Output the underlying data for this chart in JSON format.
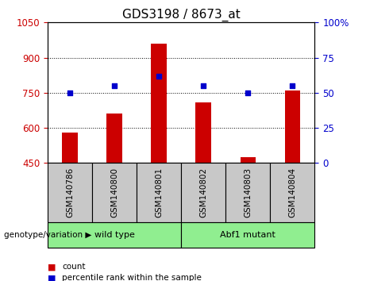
{
  "title": "GDS3198 / 8673_at",
  "samples": [
    "GSM140786",
    "GSM140800",
    "GSM140801",
    "GSM140802",
    "GSM140803",
    "GSM140804"
  ],
  "counts": [
    580,
    660,
    960,
    710,
    475,
    760
  ],
  "percentile_ranks": [
    50,
    55,
    62,
    55,
    50,
    55
  ],
  "ylim_left": [
    450,
    1050
  ],
  "ylim_right": [
    0,
    100
  ],
  "yticks_left": [
    450,
    600,
    750,
    900,
    1050
  ],
  "yticks_right": [
    0,
    25,
    50,
    75,
    100
  ],
  "bar_color": "#cc0000",
  "marker_color": "#0000cc",
  "groups": [
    {
      "label": "wild type",
      "span": [
        0,
        2
      ]
    },
    {
      "label": "Abf1 mutant",
      "span": [
        3,
        5
      ]
    }
  ],
  "group_label_prefix": "genotype/variation",
  "legend_items": [
    {
      "label": "count",
      "color": "#cc0000"
    },
    {
      "label": "percentile rank within the sample",
      "color": "#0000cc"
    }
  ],
  "cell_bg": "#c8c8c8",
  "group_bg": "#90ee90",
  "title_fontsize": 11,
  "tick_fontsize": 8.5,
  "sample_fontsize": 7.5,
  "group_fontsize": 8,
  "legend_fontsize": 7.5
}
